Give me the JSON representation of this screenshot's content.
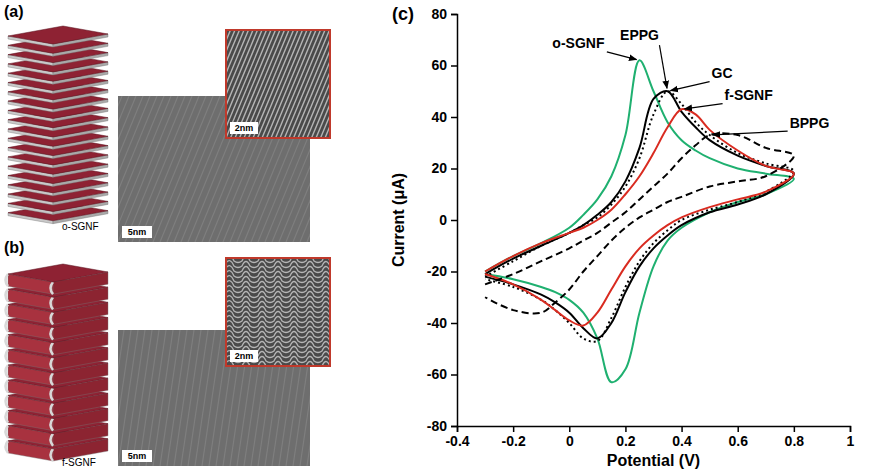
{
  "figure": {
    "panels": [
      {
        "letter": "(a)",
        "sample": "o-SGNF",
        "scale_bar": "5nm",
        "inset_scale_bar": "2nm"
      },
      {
        "letter": "(b)",
        "sample": "f-SGNF",
        "scale_bar": "5nm",
        "inset_scale_bar": "2nm"
      }
    ],
    "chart_letter": "(c)"
  },
  "chart_data": {
    "type": "line",
    "x_label": "Potential (V)",
    "y_label": "Current (μA)",
    "xlim": [
      -0.4,
      1
    ],
    "xticks": [
      -0.4,
      -0.2,
      0,
      0.2,
      0.4,
      0.6,
      0.8,
      1
    ],
    "ylim": [
      -80,
      80
    ],
    "yticks": [
      -80,
      -60,
      -40,
      -20,
      0,
      20,
      40,
      60,
      80
    ],
    "x": [
      -0.3,
      -0.2,
      -0.1,
      0,
      0.05,
      0.1,
      0.15,
      0.2,
      0.25,
      0.3,
      0.35,
      0.4,
      0.45,
      0.5,
      0.6,
      0.7,
      0.8,
      0.7,
      0.6,
      0.5,
      0.4,
      0.35,
      0.3,
      0.25,
      0.2,
      0.15,
      0.1,
      0.05,
      0,
      -0.05,
      -0.1,
      -0.2,
      -0.3
    ],
    "series": [
      {
        "name": "o-SGNF",
        "color": "#1fb070",
        "line_style": "solid",
        "values": [
          -20,
          -14,
          -9,
          -3,
          2,
          8,
          17,
          33,
          62,
          50,
          38,
          31,
          27,
          24,
          20,
          18,
          16,
          10,
          7,
          3,
          -3,
          -8,
          -18,
          -36,
          -58,
          -63,
          -46,
          -36,
          -31,
          -28,
          -26,
          -23,
          -21
        ]
      },
      {
        "name": "EPPG",
        "color": "#000000",
        "line_style": "solid",
        "values": [
          -21,
          -15,
          -10,
          -5,
          -2,
          2,
          7,
          15,
          28,
          47,
          50,
          42,
          36,
          31,
          25,
          21,
          18,
          10,
          6,
          3,
          -2,
          -6,
          -11,
          -18,
          -28,
          -40,
          -46,
          -42,
          -36,
          -32,
          -29,
          -25,
          -22
        ]
      },
      {
        "name": "GC",
        "color": "#000000",
        "line_style": "dotted",
        "values": [
          -22,
          -16,
          -10,
          -5,
          -2,
          1,
          6,
          13,
          24,
          41,
          50,
          45,
          38,
          33,
          26,
          22,
          19,
          11,
          7,
          4,
          0,
          -4,
          -9,
          -16,
          -26,
          -38,
          -47,
          -46,
          -40,
          -35,
          -31,
          -26,
          -23
        ]
      },
      {
        "name": "f-SGNF",
        "color": "#d92b20",
        "line_style": "solid",
        "values": [
          -20,
          -14,
          -9,
          -5,
          -3,
          0,
          4,
          10,
          17,
          26,
          36,
          43,
          41,
          35,
          27,
          21,
          18,
          11,
          8,
          5,
          1,
          -2,
          -6,
          -11,
          -18,
          -27,
          -36,
          -41,
          -39,
          -35,
          -31,
          -25,
          -21
        ]
      },
      {
        "name": "BPPG",
        "color": "#000000",
        "line_style": "dashed",
        "values": [
          -25,
          -21,
          -16,
          -11,
          -8,
          -5,
          -1,
          3,
          8,
          13,
          18,
          24,
          29,
          33,
          33,
          28,
          25,
          17,
          15,
          13,
          9,
          7,
          4,
          1,
          -3,
          -8,
          -14,
          -20,
          -27,
          -32,
          -36,
          -35,
          -30
        ]
      }
    ]
  }
}
